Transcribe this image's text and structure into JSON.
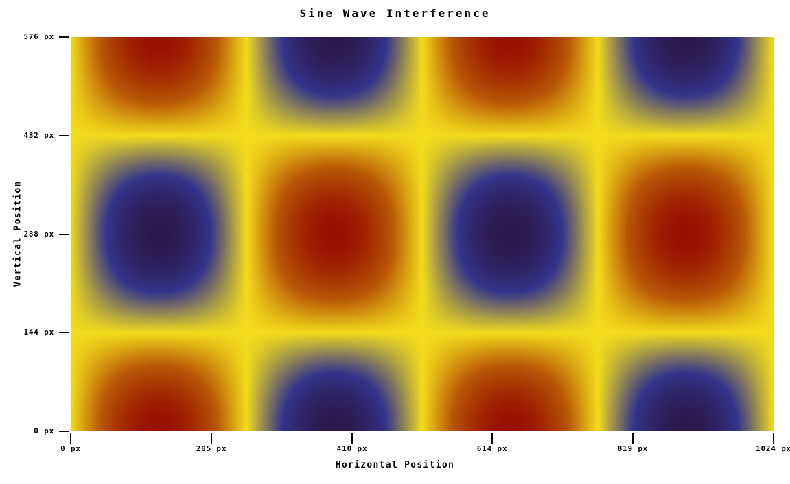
{
  "title": "Sine Wave Interference",
  "x_axis": {
    "label": "Horizontal Position",
    "ticks": [
      {
        "pos": 0,
        "label": "0 px"
      },
      {
        "pos": 205,
        "label": "205 px"
      },
      {
        "pos": 410,
        "label": "410 px"
      },
      {
        "pos": 614,
        "label": "614 px"
      },
      {
        "pos": 819,
        "label": "819 px"
      },
      {
        "pos": 1024,
        "label": "1024 px"
      }
    ]
  },
  "y_axis": {
    "label": "Vertical Position",
    "ticks": [
      {
        "pos": 0,
        "label": "0 px"
      },
      {
        "pos": 144,
        "label": "144 px"
      },
      {
        "pos": 288,
        "label": "288 px"
      },
      {
        "pos": 432,
        "label": "432 px"
      },
      {
        "pos": 576,
        "label": "576 px"
      }
    ]
  },
  "chart_data": {
    "type": "heatmap",
    "title": "Sine Wave Interference",
    "xlabel": "Horizontal Position",
    "ylabel": "Vertical Position",
    "x_range": [
      0,
      1024
    ],
    "y_range": [
      0,
      576
    ],
    "z_range": [
      -1,
      1
    ],
    "formula": "z = sin(2*pi*x / 512) * cos(2*pi*y / 576)",
    "wavelength_x": 512,
    "wavelength_y": 576,
    "node_lines_x": [
      0,
      256,
      512,
      768,
      1024
    ],
    "node_lines_y": [
      144,
      432
    ],
    "red_maxima_xy": [
      [
        128,
        0
      ],
      [
        640,
        0
      ],
      [
        384,
        288
      ],
      [
        896,
        288
      ],
      [
        128,
        576
      ],
      [
        640,
        576
      ]
    ],
    "blue_minima_xy": [
      [
        384,
        0
      ],
      [
        896,
        0
      ],
      [
        128,
        288
      ],
      [
        640,
        288
      ],
      [
        384,
        576
      ],
      [
        896,
        576
      ]
    ],
    "grid": false,
    "legend": "none",
    "colorbar": false,
    "colormap": [
      {
        "t": 0.0,
        "color": "#2c184a"
      },
      {
        "t": 0.2,
        "color": "#34348c"
      },
      {
        "t": 0.5,
        "color": "#f2dc1c"
      },
      {
        "t": 0.75,
        "color": "#b95806"
      },
      {
        "t": 1.0,
        "color": "#961000"
      }
    ],
    "background": "#ffffff",
    "text_color": "#000000"
  }
}
